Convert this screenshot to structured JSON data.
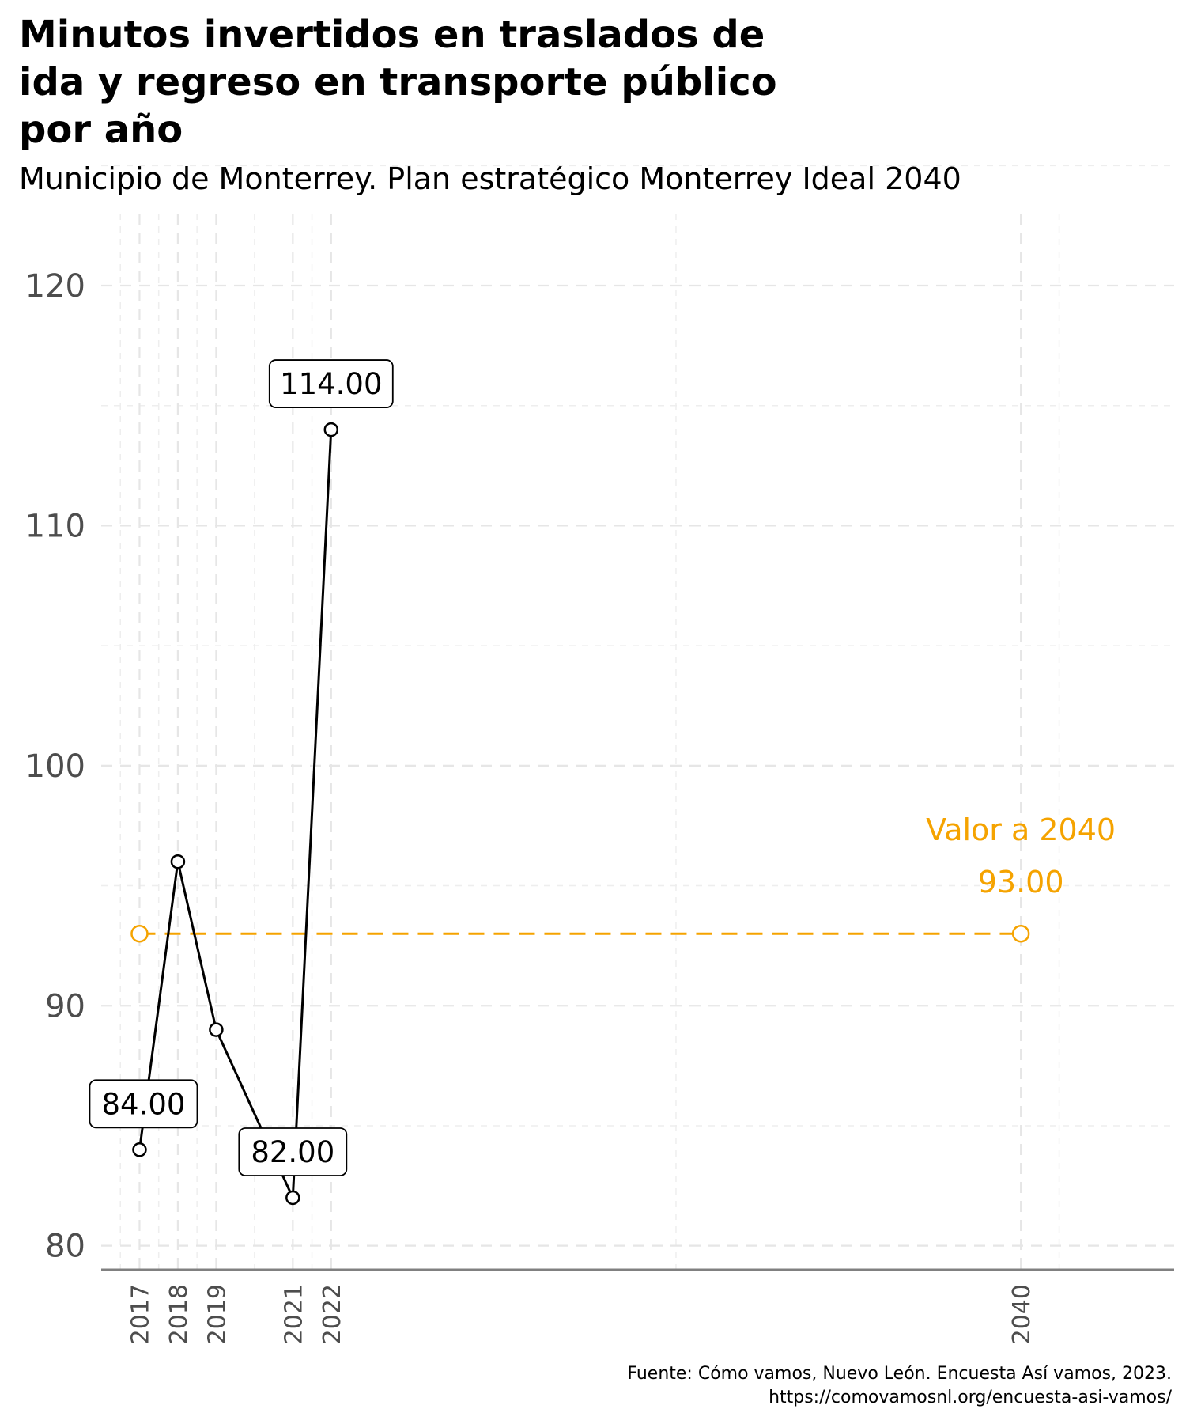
{
  "chart_data": {
    "type": "line",
    "title": "Minutos invertidos en traslados de ida y regreso en transporte público por año",
    "title_lines": [
      "Minutos invertidos en traslados de",
      "ida y regreso en transporte público",
      "por año"
    ],
    "subtitle": "Municipio de Monterrey. Plan estratégico Monterrey Ideal 2040",
    "xlabel": "",
    "ylabel": "",
    "x_ticks": [
      2017,
      2018,
      2019,
      2021,
      2022,
      2040
    ],
    "y_ticks": [
      80,
      90,
      100,
      110,
      120
    ],
    "ylim": [
      79,
      123
    ],
    "xlim": [
      2016,
      2044
    ],
    "grid": true,
    "series": [
      {
        "x": [
          2017,
          2018,
          2019,
          2021,
          2022
        ],
        "values": [
          84,
          96,
          89,
          82,
          114
        ],
        "color": "#000000"
      }
    ],
    "data_labels": [
      {
        "x": 2017,
        "y": 84,
        "text": "84.00"
      },
      {
        "x": 2021,
        "y": 82,
        "text": "82.00"
      },
      {
        "x": 2022,
        "y": 114,
        "text": "114.00"
      }
    ],
    "target": {
      "x": [
        2017,
        2040
      ],
      "value": 93,
      "label": "Valor a 2040",
      "value_text": "93.00",
      "color": "#f5a300"
    },
    "caption_lines": [
      "Fuente: Cómo vamos, Nuevo León. Encuesta Así vamos, 2023.",
      "https://comovamosnl.org/encuesta-asi-vamos/"
    ]
  }
}
